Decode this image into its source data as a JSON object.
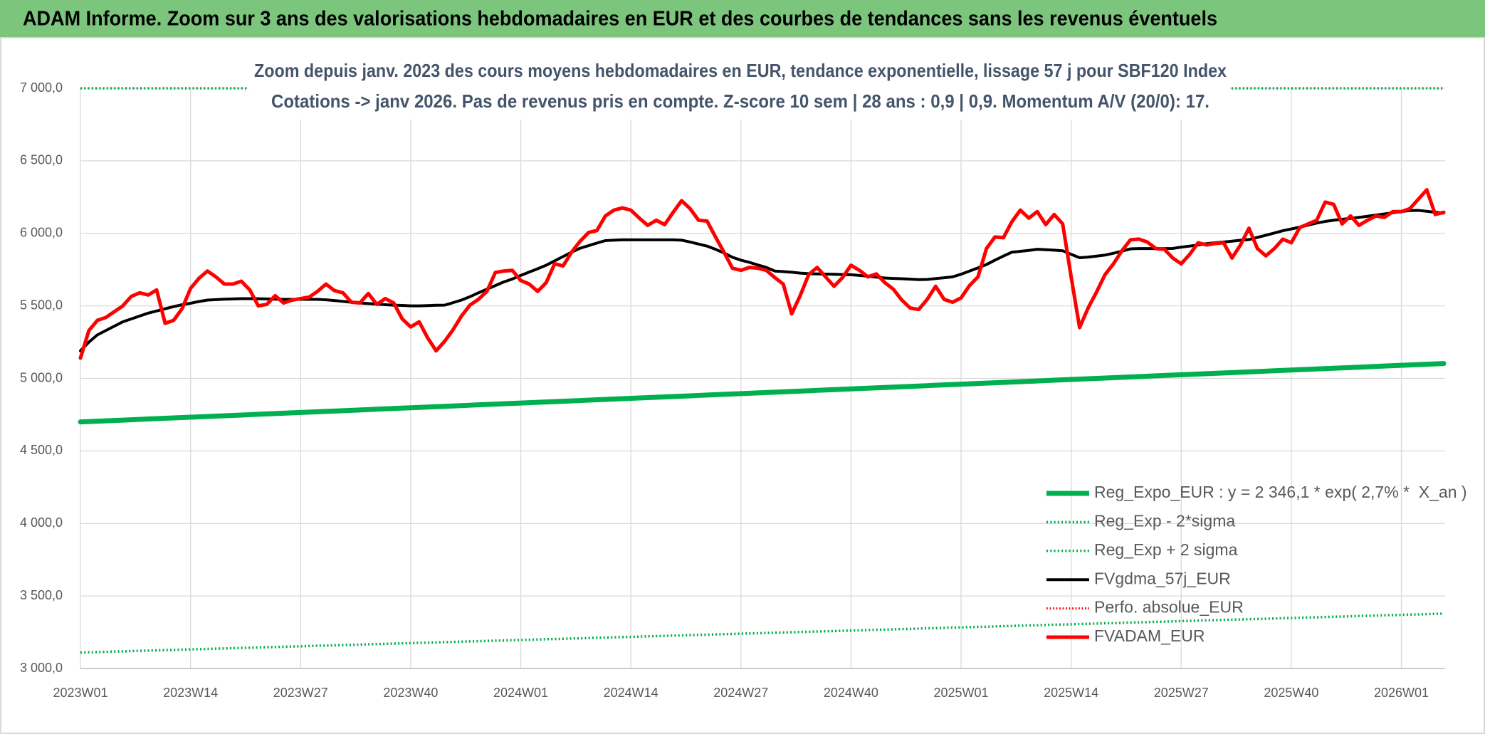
{
  "header": {
    "title": "ADAM Informe. Zoom sur 3 ans des valorisations hebdomadaires en EUR et des courbes de tendances sans les revenus éventuels"
  },
  "chart_data": {
    "type": "line",
    "title": "Zoom depuis janv. 2023 des cours moyens hebdomadaires en EUR, tendance exponentielle, lissage 57 j pour SBF120 Index",
    "subtitle": "Cotations -> janv 2026. Pas de revenus pris en compte. Z-score 10 sem | 28 ans : 0,9 | 0,9. Momentum A/V (20/0): 17.",
    "categories": [
      "2023W01",
      null,
      null,
      null,
      null,
      null,
      null,
      null,
      null,
      null,
      null,
      null,
      null,
      "2023W14",
      null,
      null,
      null,
      null,
      null,
      null,
      null,
      null,
      null,
      null,
      null,
      null,
      "2023W27",
      null,
      null,
      null,
      null,
      null,
      null,
      null,
      null,
      null,
      null,
      null,
      null,
      "2023W40",
      null,
      null,
      null,
      null,
      null,
      null,
      null,
      null,
      null,
      null,
      null,
      null,
      "2024W01",
      null,
      null,
      null,
      null,
      null,
      null,
      null,
      null,
      null,
      null,
      null,
      null,
      "2024W14",
      null,
      null,
      null,
      null,
      null,
      null,
      null,
      null,
      null,
      null,
      null,
      null,
      "2024W27",
      null,
      null,
      null,
      null,
      null,
      null,
      null,
      null,
      null,
      null,
      null,
      null,
      "2024W40",
      null,
      null,
      null,
      null,
      null,
      null,
      null,
      null,
      null,
      null,
      null,
      null,
      "2025W01",
      null,
      null,
      null,
      null,
      null,
      null,
      null,
      null,
      null,
      null,
      null,
      null,
      "2025W14",
      null,
      null,
      null,
      null,
      null,
      null,
      null,
      null,
      null,
      null,
      null,
      null,
      "2025W27",
      null,
      null,
      null,
      null,
      null,
      null,
      null,
      null,
      null,
      null,
      null,
      null,
      "2025W40",
      null,
      null,
      null,
      null,
      null,
      null,
      null,
      null,
      null,
      null,
      null,
      null,
      "2026W01",
      null,
      null,
      null,
      null,
      null
    ],
    "ylim": [
      3000,
      7000
    ],
    "yticks": [
      {
        "value": 3000,
        "label": "3 000,0"
      },
      {
        "value": 3500,
        "label": "3 500,0"
      },
      {
        "value": 4000,
        "label": "4 000,0"
      },
      {
        "value": 4500,
        "label": "4 500,0"
      },
      {
        "value": 5000,
        "label": "5 000,0"
      },
      {
        "value": 5500,
        "label": "5 500,0"
      },
      {
        "value": 6000,
        "label": "6 000,0"
      },
      {
        "value": 6500,
        "label": "6 500,0"
      },
      {
        "value": 7000,
        "label": "7 000,0"
      }
    ],
    "grid": true,
    "legend": "lower right",
    "series": [
      {
        "name": "Reg_Expo_EUR : y = 2 346,1 * exp( 2,7% *  X_an )",
        "color": "#00b050",
        "width": 7,
        "dash": "solid",
        "values": [
          4700,
          4702.5,
          4705,
          4707.5,
          4710,
          4712.5,
          4715,
          4717.5,
          4720,
          4722.5,
          4725,
          4727.5,
          4730,
          4732.5,
          4735,
          4737.5,
          4740,
          4742.5,
          4745,
          4747.5,
          4750,
          4752.5,
          4755,
          4757.5,
          4760,
          4762.5,
          4765,
          4767.5,
          4770,
          4772.5,
          4775,
          4777.5,
          4780,
          4782.5,
          4785,
          4787.5,
          4790,
          4792.5,
          4795,
          4797.5,
          4800,
          4802.5,
          4805,
          4807.5,
          4810,
          4812.5,
          4815,
          4817.5,
          4820,
          4822.5,
          4825,
          4827.5,
          4830,
          4832.5,
          4835,
          4837.5,
          4840,
          4842.5,
          4845,
          4847.5,
          4850,
          4852.5,
          4855,
          4857.5,
          4860,
          4862.5,
          4865,
          4867.5,
          4870,
          4872.5,
          4875,
          4877.5,
          4880,
          4882.5,
          4885,
          4887.5,
          4890,
          4892.5,
          4895,
          4897.5,
          4900,
          4902.5,
          4905,
          4907.5,
          4910,
          4912.5,
          4915,
          4917.5,
          4920,
          4922.5,
          4925,
          4927.5,
          4930,
          4932.5,
          4935,
          4937.5,
          4940,
          4942.5,
          4945,
          4947.5,
          4950,
          4952.5,
          4955,
          4957.5,
          4960,
          4962.5,
          4965,
          4967.5,
          4970,
          4972.5,
          4975,
          4977.5,
          4980,
          4982.5,
          4985,
          4987.5,
          4990,
          4992.5,
          4995,
          4997.5,
          5000,
          5002.5,
          5005,
          5007.5,
          5010,
          5012.5,
          5015,
          5017.5,
          5020,
          5022.5,
          5025,
          5027.5,
          5030,
          5032.5,
          5035,
          5037.5,
          5040,
          5042.5,
          5045,
          5047.5,
          5050,
          5052.5,
          5055,
          5057.5,
          5060,
          5062.5,
          5065,
          5067.5,
          5070,
          5072.5,
          5075,
          5077.5,
          5080,
          5082.5,
          5085,
          5087.5,
          5090,
          5092.5,
          5095,
          5097.5,
          5100,
          5102.5
        ]
      },
      {
        "name": "Reg_Exp - 2*sigma",
        "color": "#00b050",
        "width": 3.5,
        "dash": "dotted",
        "values": [
          3110,
          3112,
          3113,
          3115,
          3117,
          3118,
          3120,
          3122,
          3123,
          3125,
          3127,
          3128,
          3130,
          3132,
          3133,
          3135,
          3137,
          3138,
          3140,
          3142,
          3143,
          3145,
          3147,
          3148,
          3150,
          3152,
          3153,
          3155,
          3157,
          3158,
          3160,
          3162,
          3163,
          3165,
          3167,
          3168,
          3170,
          3172,
          3173,
          3175,
          3177,
          3178,
          3180,
          3182,
          3183,
          3185,
          3187,
          3188,
          3190,
          3192,
          3193,
          3195,
          3197,
          3198,
          3200,
          3202,
          3203,
          3205,
          3207,
          3208,
          3210,
          3212,
          3213,
          3215,
          3217,
          3218,
          3220,
          3222,
          3223,
          3225,
          3227,
          3228,
          3230,
          3232,
          3233,
          3235,
          3237,
          3238,
          3240,
          3242,
          3243,
          3245,
          3247,
          3248,
          3250,
          3252,
          3253,
          3255,
          3257,
          3258,
          3260,
          3262,
          3263,
          3265,
          3267,
          3268,
          3270,
          3272,
          3273,
          3275,
          3277,
          3278,
          3280,
          3282,
          3283,
          3285,
          3287,
          3288,
          3290,
          3292,
          3293,
          3295,
          3297,
          3298,
          3300,
          3302,
          3303,
          3305,
          3307,
          3308,
          3310,
          3312,
          3313,
          3315,
          3317,
          3318,
          3320,
          3322,
          3323,
          3325,
          3327,
          3328,
          3330,
          3332,
          3333,
          3335,
          3337,
          3338,
          3340,
          3342,
          3343,
          3345,
          3347,
          3348,
          3350,
          3352,
          3353,
          3355,
          3357,
          3358,
          3360,
          3362,
          3363,
          3365,
          3367,
          3368,
          3370,
          3372,
          3373,
          3375,
          3377,
          3378
        ]
      },
      {
        "name": "Reg_Exp + 2 sigma",
        "color": "#00b050",
        "width": 3.5,
        "dash": "dotted",
        "values": [
          7000,
          7000,
          7000,
          7000,
          7000,
          7000,
          7000,
          7000,
          7000,
          7000,
          7000,
          7000,
          7000,
          7000,
          7000,
          7000,
          7000,
          7000,
          7000,
          7000,
          7000,
          7000,
          7000,
          7000,
          7000,
          7000,
          7000,
          7000,
          7000,
          7000,
          7000,
          7000,
          7000,
          7000,
          7000,
          7000,
          7000,
          7000,
          7000,
          7000,
          7000,
          7000,
          7000,
          7000,
          7000,
          7000,
          7000,
          7000,
          7000,
          7000,
          7000,
          7000,
          7000,
          7000,
          7000,
          7000,
          7000,
          7000,
          7000,
          7000,
          7000,
          7000,
          7000,
          7000,
          7000,
          7000,
          7000,
          7000,
          7000,
          7000,
          7000,
          7000,
          7000,
          7000,
          7000,
          7000,
          7000,
          7000,
          7000,
          7000,
          7000,
          7000,
          7000,
          7000,
          7000,
          7000,
          7000,
          7000,
          7000,
          7000,
          7000,
          7000,
          7000,
          7000,
          7000,
          7000,
          7000,
          7000,
          7000,
          7000,
          7000,
          7000,
          7000,
          7000,
          7000,
          7000,
          7000,
          7000,
          7000,
          7000,
          7000,
          7000,
          7000,
          7000,
          7000,
          7000,
          7000,
          7000,
          7000,
          7000,
          7000,
          7000,
          7000,
          7000,
          7000,
          7000,
          7000,
          7000,
          7000,
          7000,
          7000,
          7000,
          7000,
          7000,
          7000,
          7000,
          7000,
          7000,
          7000,
          7000,
          7000,
          7000,
          7000,
          7000,
          7000,
          7000,
          7000,
          7000,
          7000,
          7000,
          7000,
          7000,
          7000,
          7000,
          7000,
          7000,
          7000,
          7000,
          7000,
          7000,
          7000,
          7000
        ]
      },
      {
        "name": "FVgdma_57j_EUR",
        "color": "#000000",
        "width": 4,
        "dash": "solid",
        "values": [
          5190,
          5250,
          5300,
          5330,
          5360,
          5390,
          5410,
          5430,
          5450,
          5465,
          5480,
          5495,
          5508,
          5518,
          5530,
          5540,
          5543,
          5546,
          5548,
          5550,
          5550,
          5549,
          5548,
          5546,
          5545,
          5545,
          5545,
          5545,
          5545,
          5542,
          5537,
          5531,
          5525,
          5520,
          5516,
          5512,
          5508,
          5505,
          5503,
          5500,
          5500,
          5502,
          5504,
          5505,
          5522,
          5540,
          5563,
          5590,
          5615,
          5640,
          5665,
          5685,
          5710,
          5733,
          5756,
          5780,
          5810,
          5840,
          5870,
          5897,
          5915,
          5933,
          5950,
          5953,
          5955,
          5955,
          5955,
          5955,
          5955,
          5955,
          5955,
          5953,
          5940,
          5926,
          5912,
          5890,
          5865,
          5835,
          5815,
          5800,
          5782,
          5765,
          5740,
          5736,
          5732,
          5726,
          5722,
          5720,
          5719,
          5718,
          5716,
          5715,
          5710,
          5704,
          5698,
          5692,
          5689,
          5687,
          5684,
          5681,
          5682,
          5688,
          5694,
          5700,
          5718,
          5740,
          5762,
          5785,
          5815,
          5843,
          5870,
          5876,
          5882,
          5890,
          5887,
          5884,
          5880,
          5855,
          5832,
          5836,
          5843,
          5850,
          5863,
          5877,
          5893,
          5895,
          5895,
          5895,
          5895,
          5896,
          5905,
          5912,
          5920,
          5929,
          5935,
          5940,
          5946,
          5952,
          5957,
          5972,
          5987,
          6002,
          6018,
          6030,
          6043,
          6057,
          6071,
          6082,
          6090,
          6097,
          6103,
          6110,
          6118,
          6126,
          6134,
          6142,
          6150,
          6157,
          6158,
          6152,
          6145,
          6140
        ]
      },
      {
        "name": "Perfo. absolue_EUR",
        "color": "#ff0000",
        "width": 3,
        "dash": "dotted",
        "values": [
          null,
          null,
          null,
          null,
          null,
          null,
          null,
          null,
          null,
          null,
          null,
          null,
          null,
          null,
          null,
          null,
          null,
          null,
          null,
          null,
          null,
          null,
          null,
          null,
          null,
          null,
          null,
          null,
          null,
          null,
          null,
          null,
          null,
          null,
          null,
          null,
          null,
          null,
          null,
          null,
          null,
          null,
          null,
          null,
          null,
          null,
          null,
          null,
          null,
          null,
          null,
          null,
          null,
          null,
          null,
          null,
          null,
          null,
          null,
          null,
          null,
          null,
          null,
          null,
          null,
          null,
          null,
          null,
          null,
          null,
          null,
          null,
          null,
          null,
          null,
          null,
          null,
          null,
          null,
          null,
          null,
          null,
          null,
          null,
          null,
          null,
          null,
          null,
          null,
          null,
          null,
          null,
          null,
          null,
          null,
          null,
          null,
          null,
          null,
          null,
          null,
          null,
          null,
          null,
          null,
          null,
          null,
          null,
          null,
          null,
          null,
          null,
          null,
          null,
          null,
          null,
          null,
          null,
          null,
          null,
          null,
          null,
          null,
          null,
          null,
          null,
          null,
          null,
          null,
          null,
          null,
          null,
          null,
          null,
          null,
          null,
          null,
          null,
          null,
          null,
          null,
          null,
          null,
          null,
          null,
          null,
          null,
          null,
          null,
          null,
          null,
          null,
          null,
          null,
          null,
          null,
          null,
          null,
          null,
          null,
          null,
          null
        ]
      },
      {
        "name": "FVADAM_EUR",
        "color": "#ff0000",
        "width": 5,
        "dash": "solid",
        "values": [
          5140,
          5330,
          5400,
          5420,
          5460,
          5500,
          5565,
          5590,
          5575,
          5610,
          5380,
          5400,
          5480,
          5620,
          5690,
          5740,
          5700,
          5650,
          5650,
          5670,
          5610,
          5500,
          5510,
          5570,
          5520,
          5540,
          5550,
          5560,
          5600,
          5650,
          5605,
          5590,
          5525,
          5520,
          5585,
          5510,
          5550,
          5520,
          5410,
          5355,
          5390,
          5280,
          5190,
          5255,
          5335,
          5430,
          5505,
          5545,
          5600,
          5730,
          5740,
          5745,
          5675,
          5650,
          5600,
          5660,
          5790,
          5775,
          5870,
          5945,
          6005,
          6020,
          6120,
          6160,
          6175,
          6160,
          6105,
          6055,
          6090,
          6060,
          6145,
          6225,
          6170,
          6090,
          6085,
          5975,
          5870,
          5760,
          5745,
          5765,
          5760,
          5745,
          5695,
          5650,
          5445,
          5570,
          5715,
          5765,
          5700,
          5635,
          5695,
          5780,
          5745,
          5700,
          5720,
          5660,
          5615,
          5540,
          5485,
          5475,
          5545,
          5635,
          5545,
          5525,
          5555,
          5640,
          5700,
          5895,
          5975,
          5970,
          6080,
          6160,
          6105,
          6150,
          6060,
          6130,
          6065,
          5700,
          5350,
          5485,
          5595,
          5715,
          5790,
          5880,
          5955,
          5960,
          5940,
          5895,
          5890,
          5830,
          5790,
          5855,
          5935,
          5920,
          5930,
          5935,
          5830,
          5920,
          6035,
          5895,
          5845,
          5895,
          5960,
          5935,
          6040,
          6065,
          6090,
          6215,
          6200,
          6065,
          6120,
          6055,
          6090,
          6120,
          6110,
          6150,
          6150,
          6170,
          6235,
          6300,
          6130,
          6145
        ]
      }
    ]
  }
}
